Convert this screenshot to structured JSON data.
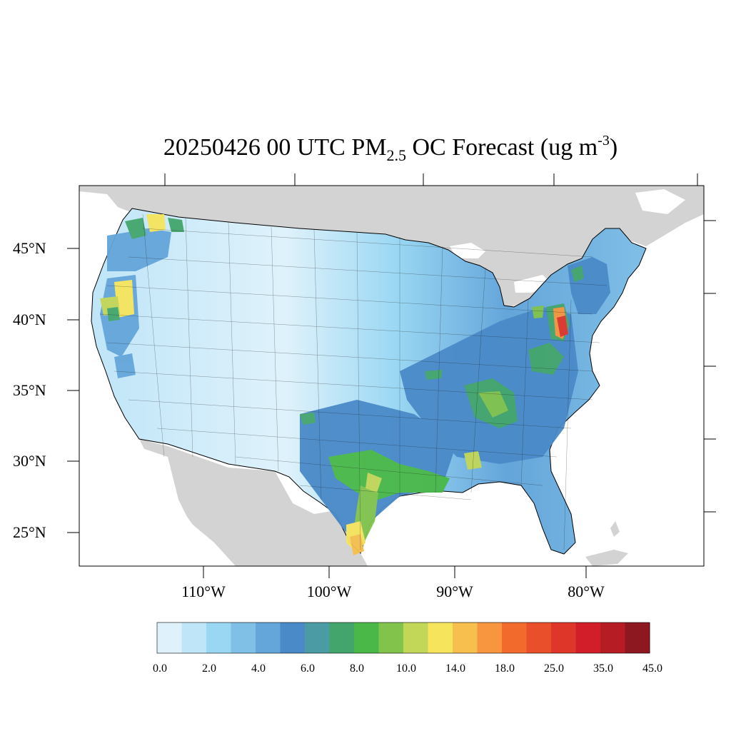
{
  "title": {
    "prefix": "20250426 00 UTC PM",
    "subscript": "2.5",
    "middle": " OC Forecast (ug m",
    "superscript": "-3",
    "suffix": ")"
  },
  "map": {
    "region": "Contiguous United States",
    "variable": "PM2.5 organic carbon",
    "units": "ug m-3",
    "lat_labels": [
      "45°N",
      "40°N",
      "35°N",
      "30°N",
      "25°N"
    ],
    "lon_labels": [
      "110°W",
      "100°W",
      "90°W",
      "80°W"
    ],
    "land_outside_color": "#d3d3d3",
    "water_color": "#ffffff",
    "hotspots": [
      {
        "area": "Eastern Pennsylvania / Maryland",
        "level": "25.0-35.0"
      },
      {
        "area": "South Texas",
        "level": "14.0-25.0"
      },
      {
        "area": "Northern Idaho / Washington",
        "level": "10.0-14.0"
      },
      {
        "area": "Northern California / Oregon border",
        "level": "10.0-14.0"
      }
    ]
  },
  "colorbar": {
    "colors": [
      "#dff2fb",
      "#bfe5f8",
      "#9ad7f3",
      "#80bfe6",
      "#64a5da",
      "#4a8ac8",
      "#4a9ba3",
      "#44a56c",
      "#4ab848",
      "#82c34c",
      "#c2d657",
      "#f6e45c",
      "#f6bf4e",
      "#f7963e",
      "#f36b2c",
      "#e84f2a",
      "#de3629",
      "#d11e28",
      "#b51c24",
      "#8e1820"
    ],
    "tick_labels": [
      "0.0",
      "2.0",
      "4.0",
      "6.0",
      "8.0",
      "10.0",
      "14.0",
      "18.0",
      "25.0",
      "35.0",
      "45.0"
    ]
  }
}
